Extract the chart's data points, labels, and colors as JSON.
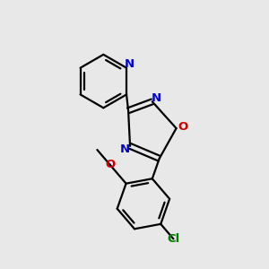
{
  "background_color": "#e8e8e8",
  "bond_color": "#000000",
  "N_color": "#0000cc",
  "O_color": "#cc0000",
  "Cl_color": "#008000",
  "line_width": 1.6,
  "font_size": 9.5,
  "fig_width": 3.0,
  "fig_height": 3.0,
  "dpi": 100,
  "xlim": [
    0,
    3.0
  ],
  "ylim": [
    0,
    3.0
  ]
}
